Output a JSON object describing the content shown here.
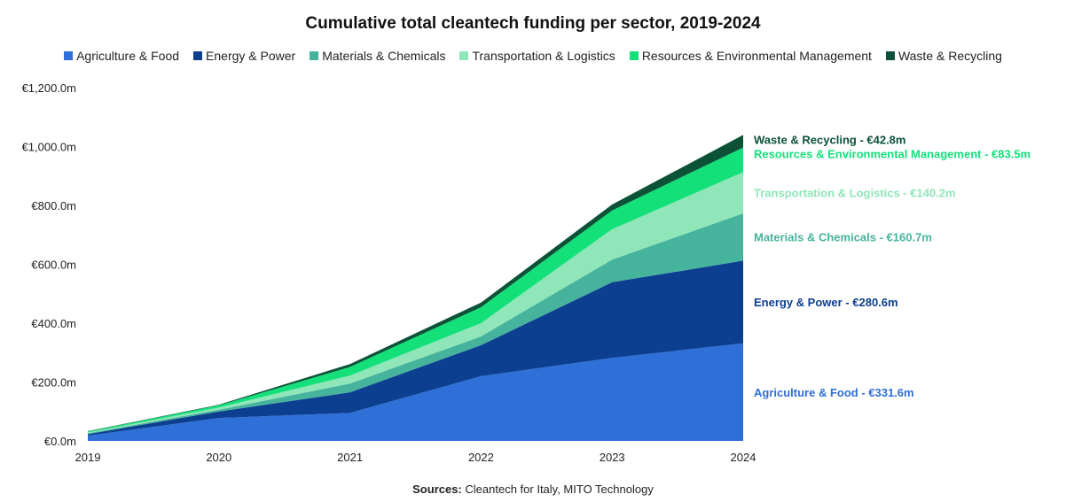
{
  "chart_data": {
    "type": "area",
    "stacked": true,
    "title": "Cumulative total cleantech funding per sector, 2019-2024",
    "x": [
      "2019",
      "2020",
      "2021",
      "2022",
      "2023",
      "2024"
    ],
    "ylim": [
      0,
      1200
    ],
    "yticks": [
      "€0.0m",
      "€200.0m",
      "€400.0m",
      "€600.0m",
      "€800.0m",
      "€1,000.0m",
      "€1,200.0m"
    ],
    "ytick_values": [
      0,
      200,
      400,
      600,
      800,
      1000,
      1200
    ],
    "legend_position": "top",
    "grid": false,
    "series": [
      {
        "name": "Agriculture & Food",
        "color": "#2e6fd8",
        "values": [
          18,
          78,
          95,
          220,
          282,
          331.6
        ],
        "end_label": "Agriculture & Food - €331.6m"
      },
      {
        "name": "Energy & Power",
        "color": "#0c3f8f",
        "values": [
          5,
          22,
          70,
          105,
          257,
          280.6
        ],
        "end_label": "Energy & Power - €280.6m"
      },
      {
        "name": "Materials & Chemicals",
        "color": "#46b39d",
        "values": [
          3,
          6,
          30,
          30,
          77,
          160.7
        ],
        "end_label": "Materials & Chemicals - €160.7m"
      },
      {
        "name": "Transportation & Logistics",
        "color": "#8fe6b8",
        "values": [
          3,
          7,
          27,
          45,
          103,
          140.2
        ],
        "end_label": "Transportation & Logistics - €140.2m"
      },
      {
        "name": "Resources & Environmental Management",
        "color": "#14e07a",
        "values": [
          3,
          8,
          29,
          54,
          64,
          83.5
        ],
        "end_label": "Resources & Environmental Management - €83.5m"
      },
      {
        "name": "Waste & Recycling",
        "color": "#0b5237",
        "values": [
          1,
          2,
          10,
          16,
          20,
          42.8
        ],
        "end_label": "Waste & Recycling - €42.8m"
      }
    ]
  },
  "footer": {
    "source_label": "Sources:",
    "source_text": " Cleantech for Italy, MITO Technology"
  }
}
